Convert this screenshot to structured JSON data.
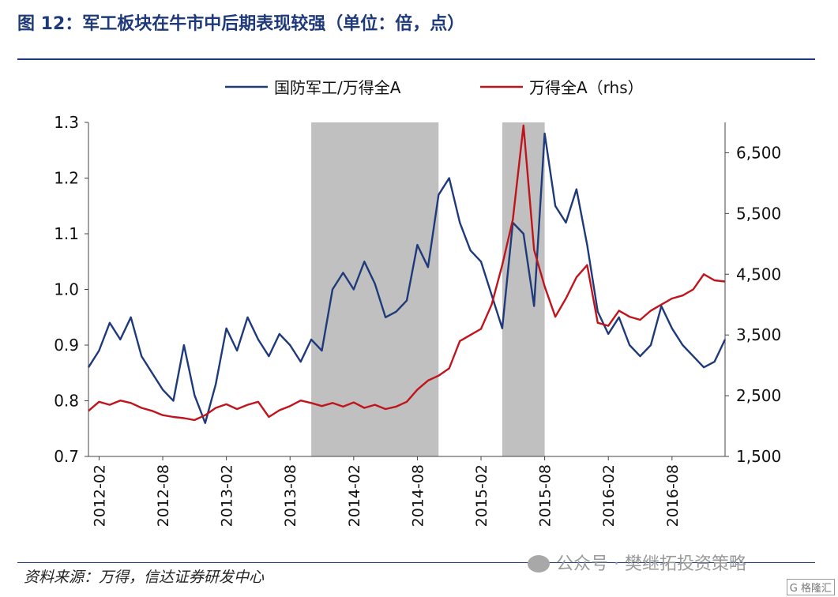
{
  "header": {
    "title": "图 12：军工板块在牛市中后期表现较强（单位：倍，点）"
  },
  "footer": {
    "source": "资料来源：万得，信达证券研发中心",
    "watermark": "公众号 · 樊继拓投资策略",
    "badge": "G 格隆汇"
  },
  "chart_data": {
    "type": "line",
    "title": "图 12：军工板块在牛市中后期表现较强（单位：倍，点）",
    "xlabel": "",
    "ylabel": "",
    "x_ticks": [
      "2012-02",
      "2012-08",
      "2013-02",
      "2013-08",
      "2014-02",
      "2014-08",
      "2015-02",
      "2015-08",
      "2016-02",
      "2016-08"
    ],
    "y_left": {
      "range": [
        0.7,
        1.3
      ],
      "ticks": [
        "0.7",
        "0.8",
        "0.9",
        "1.0",
        "1.1",
        "1.2",
        "1.3"
      ]
    },
    "y_right": {
      "range": [
        1500,
        7000
      ],
      "ticks": [
        "1,500",
        "2,500",
        "3,500",
        "4,500",
        "5,500",
        "6,500"
      ]
    },
    "legend": {
      "placement": "top-center"
    },
    "shaded_periods": [
      [
        "2013-10",
        "2014-10"
      ],
      [
        "2015-04",
        "2015-08"
      ]
    ],
    "series": [
      {
        "name": "国防军工/万得全A",
        "axis": "left",
        "color": "#1f3a7a",
        "data": [
          [
            "2012-01",
            0.86
          ],
          [
            "2012-02",
            0.89
          ],
          [
            "2012-03",
            0.94
          ],
          [
            "2012-04",
            0.91
          ],
          [
            "2012-05",
            0.95
          ],
          [
            "2012-06",
            0.88
          ],
          [
            "2012-07",
            0.85
          ],
          [
            "2012-08",
            0.82
          ],
          [
            "2012-09",
            0.8
          ],
          [
            "2012-10",
            0.9
          ],
          [
            "2012-11",
            0.81
          ],
          [
            "2012-12",
            0.76
          ],
          [
            "2013-01",
            0.83
          ],
          [
            "2013-02",
            0.93
          ],
          [
            "2013-03",
            0.89
          ],
          [
            "2013-04",
            0.95
          ],
          [
            "2013-05",
            0.91
          ],
          [
            "2013-06",
            0.88
          ],
          [
            "2013-07",
            0.92
          ],
          [
            "2013-08",
            0.9
          ],
          [
            "2013-09",
            0.87
          ],
          [
            "2013-10",
            0.91
          ],
          [
            "2013-11",
            0.89
          ],
          [
            "2013-12",
            1.0
          ],
          [
            "2014-01",
            1.03
          ],
          [
            "2014-02",
            1.0
          ],
          [
            "2014-03",
            1.05
          ],
          [
            "2014-04",
            1.01
          ],
          [
            "2014-05",
            0.95
          ],
          [
            "2014-06",
            0.96
          ],
          [
            "2014-07",
            0.98
          ],
          [
            "2014-08",
            1.08
          ],
          [
            "2014-09",
            1.04
          ],
          [
            "2014-10",
            1.17
          ],
          [
            "2014-11",
            1.2
          ],
          [
            "2014-12",
            1.12
          ],
          [
            "2015-01",
            1.07
          ],
          [
            "2015-02",
            1.05
          ],
          [
            "2015-03",
            0.99
          ],
          [
            "2015-04",
            0.93
          ],
          [
            "2015-05",
            1.12
          ],
          [
            "2015-06",
            1.1
          ],
          [
            "2015-07",
            0.97
          ],
          [
            "2015-08",
            1.28
          ],
          [
            "2015-09",
            1.15
          ],
          [
            "2015-10",
            1.12
          ],
          [
            "2015-11",
            1.18
          ],
          [
            "2015-12",
            1.08
          ],
          [
            "2016-01",
            0.96
          ],
          [
            "2016-02",
            0.92
          ],
          [
            "2016-03",
            0.95
          ],
          [
            "2016-04",
            0.9
          ],
          [
            "2016-05",
            0.88
          ],
          [
            "2016-06",
            0.9
          ],
          [
            "2016-07",
            0.97
          ],
          [
            "2016-08",
            0.93
          ],
          [
            "2016-09",
            0.9
          ],
          [
            "2016-10",
            0.88
          ],
          [
            "2016-11",
            0.86
          ],
          [
            "2016-12",
            0.87
          ],
          [
            "2017-01",
            0.91
          ]
        ]
      },
      {
        "name": "万得全A（rhs）",
        "axis": "right",
        "color": "#c0141c",
        "data": [
          [
            "2012-01",
            2250
          ],
          [
            "2012-02",
            2400
          ],
          [
            "2012-03",
            2350
          ],
          [
            "2012-04",
            2420
          ],
          [
            "2012-05",
            2380
          ],
          [
            "2012-06",
            2300
          ],
          [
            "2012-07",
            2250
          ],
          [
            "2012-08",
            2180
          ],
          [
            "2012-09",
            2150
          ],
          [
            "2012-10",
            2130
          ],
          [
            "2012-11",
            2100
          ],
          [
            "2012-12",
            2180
          ],
          [
            "2013-01",
            2300
          ],
          [
            "2013-02",
            2360
          ],
          [
            "2013-03",
            2280
          ],
          [
            "2013-04",
            2350
          ],
          [
            "2013-05",
            2400
          ],
          [
            "2013-06",
            2150
          ],
          [
            "2013-07",
            2260
          ],
          [
            "2013-08",
            2330
          ],
          [
            "2013-09",
            2420
          ],
          [
            "2013-10",
            2380
          ],
          [
            "2013-11",
            2330
          ],
          [
            "2013-12",
            2380
          ],
          [
            "2014-01",
            2320
          ],
          [
            "2014-02",
            2390
          ],
          [
            "2014-03",
            2300
          ],
          [
            "2014-04",
            2350
          ],
          [
            "2014-05",
            2280
          ],
          [
            "2014-06",
            2320
          ],
          [
            "2014-07",
            2400
          ],
          [
            "2014-08",
            2600
          ],
          [
            "2014-09",
            2750
          ],
          [
            "2014-10",
            2830
          ],
          [
            "2014-11",
            2950
          ],
          [
            "2014-12",
            3400
          ],
          [
            "2015-01",
            3500
          ],
          [
            "2015-02",
            3600
          ],
          [
            "2015-03",
            4000
          ],
          [
            "2015-04",
            4650
          ],
          [
            "2015-05",
            5400
          ],
          [
            "2015-06",
            6950
          ],
          [
            "2015-07",
            4900
          ],
          [
            "2015-08",
            4300
          ],
          [
            "2015-09",
            3800
          ],
          [
            "2015-10",
            4100
          ],
          [
            "2015-11",
            4450
          ],
          [
            "2015-12",
            4650
          ],
          [
            "2016-01",
            3700
          ],
          [
            "2016-02",
            3650
          ],
          [
            "2016-03",
            3900
          ],
          [
            "2016-04",
            3800
          ],
          [
            "2016-05",
            3750
          ],
          [
            "2016-06",
            3900
          ],
          [
            "2016-07",
            4000
          ],
          [
            "2016-08",
            4100
          ],
          [
            "2016-09",
            4150
          ],
          [
            "2016-10",
            4250
          ],
          [
            "2016-11",
            4500
          ],
          [
            "2016-12",
            4400
          ],
          [
            "2017-01",
            4380
          ]
        ]
      }
    ]
  }
}
